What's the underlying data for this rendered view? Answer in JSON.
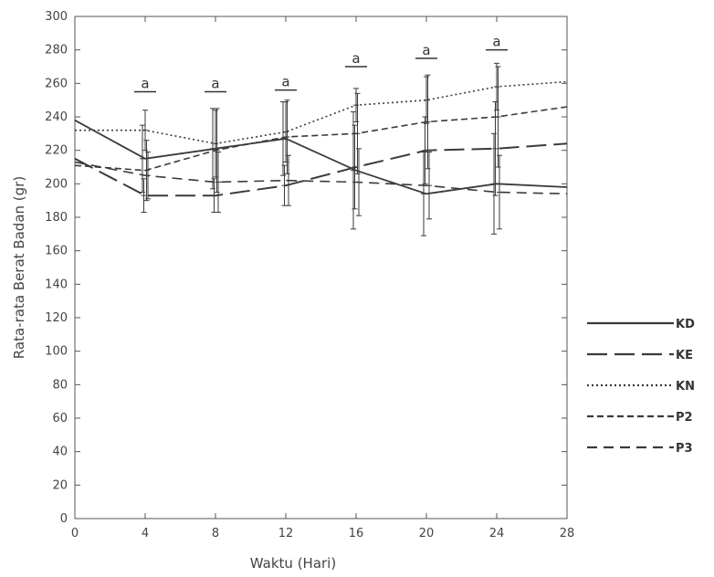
{
  "chart_data": {
    "type": "line",
    "xlabel": "Waktu (Hari)",
    "ylabel": "Rata-rata Berat Badan (gr)",
    "xlim": [
      0,
      28
    ],
    "ylim": [
      0,
      300
    ],
    "x_ticks": [
      0,
      4,
      8,
      12,
      16,
      20,
      24,
      28
    ],
    "y_ticks": [
      0,
      20,
      40,
      60,
      80,
      100,
      120,
      140,
      160,
      180,
      200,
      220,
      240,
      260,
      280,
      300
    ],
    "grid": false,
    "legend_position": "right",
    "series": [
      {
        "name": "KD",
        "dash": "solid",
        "x": [
          0,
          4,
          8,
          12,
          16,
          20,
          24,
          28
        ],
        "y": [
          238,
          215,
          221,
          227,
          208,
          194,
          200,
          198
        ],
        "err": [
          null,
          20,
          24,
          22,
          35,
          25,
          30,
          null
        ]
      },
      {
        "name": "KE",
        "dash": "longdash",
        "x": [
          0,
          4,
          8,
          12,
          16,
          20,
          24,
          28
        ],
        "y": [
          215,
          193,
          193,
          199,
          210,
          220,
          221,
          224
        ],
        "err": [
          null,
          10,
          10,
          12,
          25,
          20,
          28,
          null
        ]
      },
      {
        "name": "KN",
        "dash": "dotted",
        "x": [
          0,
          4,
          8,
          12,
          16,
          20,
          24,
          28
        ],
        "y": [
          232,
          232,
          224,
          231,
          247,
          250,
          258,
          261
        ],
        "err": [
          null,
          12,
          20,
          18,
          10,
          14,
          14,
          null
        ]
      },
      {
        "name": "P2",
        "dash": "dashed",
        "x": [
          0,
          4,
          8,
          12,
          16,
          20,
          24,
          28
        ],
        "y": [
          211,
          208,
          220,
          228,
          230,
          237,
          240,
          246
        ],
        "err": [
          null,
          18,
          25,
          22,
          24,
          28,
          30,
          null
        ]
      },
      {
        "name": "P3",
        "dash": "dashed2",
        "x": [
          0,
          4,
          8,
          12,
          16,
          20,
          24,
          28
        ],
        "y": [
          213,
          205,
          201,
          202,
          201,
          199,
          195,
          194
        ],
        "err": [
          null,
          14,
          18,
          15,
          20,
          20,
          22,
          null
        ]
      }
    ],
    "significance_labels": [
      {
        "x": 4,
        "y": 255,
        "text": "a"
      },
      {
        "x": 8,
        "y": 255,
        "text": "a"
      },
      {
        "x": 12,
        "y": 256,
        "text": "a"
      },
      {
        "x": 16,
        "y": 270,
        "text": "a"
      },
      {
        "x": 20,
        "y": 275,
        "text": "a"
      },
      {
        "x": 24,
        "y": 280,
        "text": "a"
      }
    ],
    "colors": {
      "line": "#3a3a3a",
      "axis": "#555555",
      "text": "#444444"
    }
  }
}
